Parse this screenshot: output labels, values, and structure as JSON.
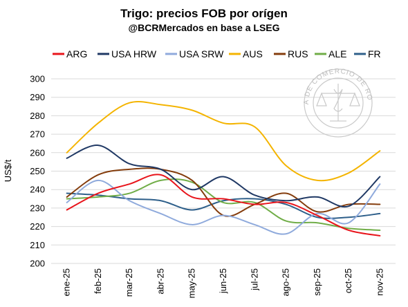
{
  "chart_data": {
    "type": "line",
    "title": "Trigo: precios FOB por orígen",
    "subtitle": "@BCRMercados en base a LSEG",
    "ylabel": "US$/t",
    "xlabel": "",
    "ylim": [
      200,
      300
    ],
    "yticks": [
      200,
      210,
      220,
      230,
      240,
      250,
      260,
      270,
      280,
      290,
      300
    ],
    "grid": true,
    "legend_position": "top",
    "categories": [
      "ene-25",
      "feb-25",
      "mar-25",
      "abr-25",
      "may-25",
      "jun-25",
      "jul-25",
      "ago-25",
      "sep-25",
      "oct-25",
      "nov-25"
    ],
    "series": [
      {
        "name": "ARG",
        "color": "#e8141b",
        "values": [
          229,
          238,
          243,
          248,
          236,
          235,
          232,
          233,
          226,
          218,
          215
        ]
      },
      {
        "name": "USA HRW",
        "color": "#1f3864",
        "values": [
          257,
          264,
          254,
          251,
          240,
          247,
          237,
          234,
          236,
          231,
          247
        ]
      },
      {
        "name": "USA SRW",
        "color": "#8faadc",
        "values": [
          233,
          245,
          234,
          227,
          221,
          226,
          221,
          216,
          227,
          222,
          243
        ]
      },
      {
        "name": "AUS",
        "color": "#f4b400",
        "values": [
          260,
          276,
          287,
          286,
          283,
          276,
          274,
          253,
          245,
          249,
          261
        ]
      },
      {
        "name": "RUS",
        "color": "#843c0c",
        "values": [
          236,
          248,
          251,
          251,
          245,
          226,
          232,
          238,
          228,
          232,
          232
        ]
      },
      {
        "name": "ALE",
        "color": "#70ad47",
        "values": [
          235,
          236,
          238,
          245,
          244,
          233,
          233,
          223,
          222,
          219,
          218
        ]
      },
      {
        "name": "FR",
        "color": "#2e5f8a",
        "values": [
          238,
          237,
          235,
          234,
          229,
          234,
          235,
          232,
          225,
          225,
          227
        ]
      }
    ],
    "watermark": "BOLSA DE COMERCIO DE ROSARIO"
  }
}
